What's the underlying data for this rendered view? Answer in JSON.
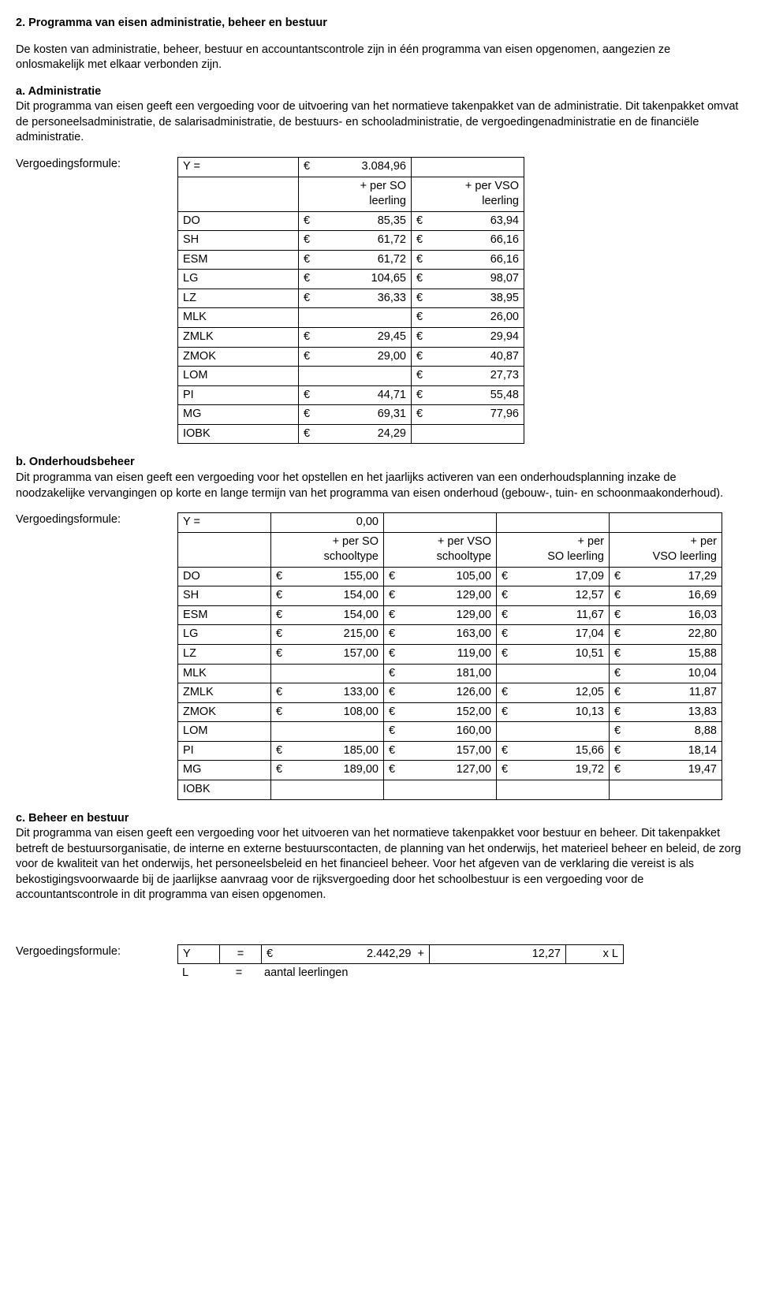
{
  "section2": {
    "title": "2. Programma van eisen administratie, beheer en bestuur",
    "intro": "De kosten van administratie, beheer, bestuur en accountantscontrole zijn in één programma van eisen opgenomen, aangezien ze onlosmakelijk met elkaar verbonden zijn.",
    "a": {
      "heading": "a. Administratie",
      "p1": "Dit programma van eisen geeft een vergoeding voor de uitvoering van het normatieve takenpakket van de administratie. Dit takenpakket omvat de personeelsadministratie, de salarisadministratie, de bestuurs- en schooladministratie, de vergoedingenadministratie en de financiële administratie.",
      "formula_label": "Vergoedingsformule:",
      "Y_eq": "Y =",
      "Y_eur": "€",
      "Y_val": "3.084,96",
      "col2_head_l1": "+ per SO",
      "col2_head_l2": "leerling",
      "col3_head_l1": "+ per VSO",
      "col3_head_l2": "leerling",
      "rows": [
        {
          "k": "DO",
          "so": "85,35",
          "vso": "63,94"
        },
        {
          "k": "SH",
          "so": "61,72",
          "vso": "66,16"
        },
        {
          "k": "ESM",
          "so": "61,72",
          "vso": "66,16"
        },
        {
          "k": "LG",
          "so": "104,65",
          "vso": "98,07"
        },
        {
          "k": "LZ",
          "so": "36,33",
          "vso": "38,95"
        },
        {
          "k": "MLK",
          "so": "",
          "vso": "26,00"
        },
        {
          "k": "ZMLK",
          "so": "29,45",
          "vso": "29,94"
        },
        {
          "k": "ZMOK",
          "so": "29,00",
          "vso": "40,87"
        },
        {
          "k": "LOM",
          "so": "",
          "vso": "27,73"
        },
        {
          "k": "PI",
          "so": "44,71",
          "vso": "55,48"
        },
        {
          "k": "MG",
          "so": "69,31",
          "vso": "77,96"
        },
        {
          "k": "IOBK",
          "so": "24,29",
          "vso": ""
        }
      ]
    },
    "b": {
      "heading": "b. Onderhoudsbeheer",
      "p1": "Dit programma van eisen geeft een vergoeding voor het opstellen en het jaarlijks activeren van een onderhoudsplanning inzake de noodzakelijke vervangingen op korte en lange termijn van het programma van eisen onderhoud (gebouw-, tuin- en schoonmaakonderhoud).",
      "formula_label": "Vergoedingsformule:",
      "Y_eq": "Y =",
      "Y_val": "0,00",
      "col2_head_l1": "+ per  SO",
      "col2_head_l2": "schooltype",
      "col3_head_l1": "+ per VSO",
      "col3_head_l2": "schooltype",
      "col4_head_l1": "+ per",
      "col4_head_l2": "SO leerling",
      "col5_head_l1": "+ per",
      "col5_head_l2": "VSO leerling",
      "rows": [
        {
          "k": "DO",
          "c2": "155,00",
          "c3": "105,00",
          "c4": "17,09",
          "c5": "17,29"
        },
        {
          "k": "SH",
          "c2": "154,00",
          "c3": "129,00",
          "c4": "12,57",
          "c5": "16,69"
        },
        {
          "k": "ESM",
          "c2": "154,00",
          "c3": "129,00",
          "c4": "11,67",
          "c5": "16,03"
        },
        {
          "k": "LG",
          "c2": "215,00",
          "c3": "163,00",
          "c4": "17,04",
          "c5": "22,80"
        },
        {
          "k": "LZ",
          "c2": "157,00",
          "c3": "119,00",
          "c4": "10,51",
          "c5": "15,88"
        },
        {
          "k": "MLK",
          "c2": "",
          "c3": "181,00",
          "c4": "",
          "c5": "10,04"
        },
        {
          "k": "ZMLK",
          "c2": "133,00",
          "c3": "126,00",
          "c4": "12,05",
          "c5": "11,87"
        },
        {
          "k": "ZMOK",
          "c2": "108,00",
          "c3": "152,00",
          "c4": "10,13",
          "c5": "13,83"
        },
        {
          "k": "LOM",
          "c2": "",
          "c3": "160,00",
          "c4": "",
          "c5": "8,88"
        },
        {
          "k": "PI",
          "c2": "185,00",
          "c3": "157,00",
          "c4": "15,66",
          "c5": "18,14"
        },
        {
          "k": "MG",
          "c2": "189,00",
          "c3": "127,00",
          "c4": "19,72",
          "c5": "19,47"
        },
        {
          "k": "IOBK",
          "c2": "",
          "c3": "",
          "c4": "",
          "c5": ""
        }
      ]
    },
    "c": {
      "heading": "c. Beheer en bestuur",
      "p1": "Dit programma van eisen geeft een vergoeding voor het uitvoeren van het normatieve takenpakket voor bestuur en beheer. Dit takenpakket betreft de bestuursorganisatie, de interne en externe bestuurscontacten, de planning van het onderwijs, het materieel beheer en beleid, de zorg voor de kwaliteit van het onderwijs, het personeelsbeleid en het financieel beheer. Voor het afgeven van de verklaring die vereist is als bekostigingsvoorwaarde bij de jaarlijkse aanvraag voor de rijksvergoeding door het schoolbestuur is een vergoeding voor de accountantscontrole in dit programma van eisen opgenomen.",
      "formula_label": "Vergoedingsformule:",
      "Y": "Y",
      "eq": "=",
      "eur": "€",
      "val1": "2.442,29",
      "plus": "+",
      "val2": "12,27",
      "xL": "x L",
      "L": "L",
      "L_eq": "=",
      "L_def": "aantal leerlingen"
    }
  }
}
